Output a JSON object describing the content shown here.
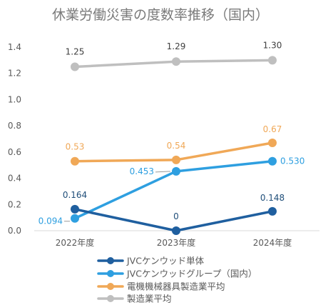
{
  "chart_data": {
    "type": "line",
    "title": "休業労働災害の度数率推移（国内）",
    "xlabel": "",
    "ylabel": "",
    "categories": [
      "2022年度",
      "2023年度",
      "2024年度"
    ],
    "ylim": [
      0,
      1.4
    ],
    "yticks": [
      "0.0",
      "0.2",
      "0.4",
      "0.6",
      "0.8",
      "1.0",
      "1.2",
      "1.4"
    ],
    "grid": false,
    "legend_position": "bottom",
    "series": [
      {
        "name": "JVCケンウッド単体",
        "color": "#1f5f9f",
        "values": [
          0.164,
          0,
          0.148
        ],
        "labels": [
          "0.164",
          "0",
          "0.148"
        ]
      },
      {
        "name": "JVCケンウッドグループ（国内）",
        "color": "#2e9fe0",
        "values": [
          0.094,
          0.453,
          0.53
        ],
        "labels": [
          "0.094",
          "0.453",
          "0.530"
        ]
      },
      {
        "name": "電機機械器具製造業平均",
        "color": "#f0a857",
        "values": [
          0.53,
          0.54,
          0.67
        ],
        "labels": [
          "0.53",
          "0.54",
          "0.67"
        ]
      },
      {
        "name": "製造業平均",
        "color": "#bfbfbf",
        "values": [
          1.25,
          1.29,
          1.3
        ],
        "labels": [
          "1.25",
          "1.29",
          "1.30"
        ]
      }
    ]
  }
}
